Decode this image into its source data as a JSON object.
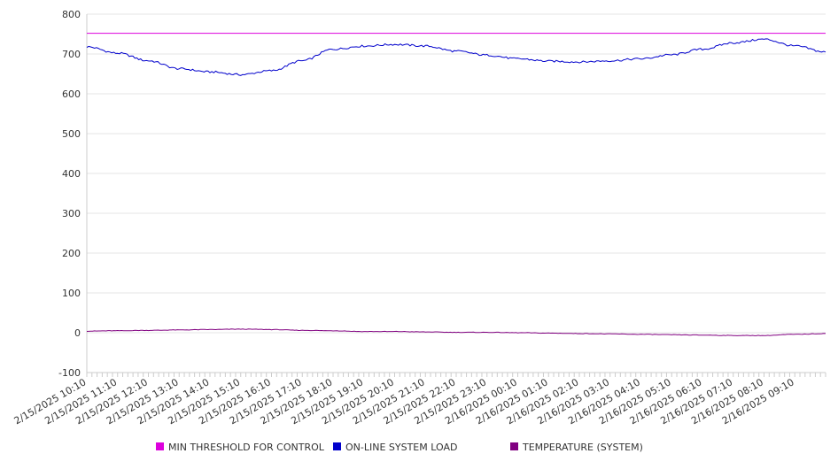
{
  "chart_data": {
    "type": "line",
    "ylim": [
      -100,
      800
    ],
    "yticks": [
      -100,
      0,
      100,
      200,
      300,
      400,
      500,
      600,
      700,
      800
    ],
    "xlim": [
      "2/15/2025 10:10",
      "2/16/2025 10:10"
    ],
    "x_tick_labels": [
      "2/15/2025 10:10",
      "2/15/2025 11:10",
      "2/15/2025 12:10",
      "2/15/2025 13:10",
      "2/15/2025 14:10",
      "2/15/2025 15:10",
      "2/15/2025 16:10",
      "2/15/2025 17:10",
      "2/15/2025 18:10",
      "2/15/2025 19:10",
      "2/15/2025 20:10",
      "2/15/2025 21:10",
      "2/15/2025 22:10",
      "2/15/2025 23:10",
      "2/16/2025 00:10",
      "2/16/2025 01:10",
      "2/16/2025 02:10",
      "2/16/2025 03:10",
      "2/16/2025 04:10",
      "2/16/2025 05:10",
      "2/16/2025 06:10",
      "2/16/2025 07:10",
      "2/16/2025 08:10",
      "2/16/2025 09:10"
    ],
    "grid": true,
    "legend_position": "bottom",
    "series": [
      {
        "name": "MIN THRESHOLD FOR CONTROL",
        "color": "#dd00dd",
        "x": [
          "2/15/2025 10:10",
          "2/16/2025 10:10"
        ],
        "values": [
          752,
          752
        ]
      },
      {
        "name": "ON-LINE SYSTEM LOAD",
        "color": "#0000cc",
        "x": [
          "2/15/2025 10:10",
          "2/15/2025 11:10",
          "2/15/2025 12:10",
          "2/15/2025 13:10",
          "2/15/2025 14:10",
          "2/15/2025 15:10",
          "2/15/2025 16:10",
          "2/15/2025 17:10",
          "2/15/2025 18:10",
          "2/15/2025 19:10",
          "2/15/2025 20:10",
          "2/15/2025 21:10",
          "2/15/2025 22:10",
          "2/15/2025 23:10",
          "2/16/2025 00:10",
          "2/16/2025 01:10",
          "2/16/2025 02:10",
          "2/16/2025 03:10",
          "2/16/2025 04:10",
          "2/16/2025 05:10",
          "2/16/2025 06:10",
          "2/16/2025 07:10",
          "2/16/2025 08:10",
          "2/16/2025 09:10",
          "2/16/2025 10:10"
        ],
        "values": [
          718,
          702,
          683,
          663,
          655,
          648,
          658,
          683,
          712,
          720,
          724,
          720,
          707,
          697,
          688,
          682,
          680,
          683,
          688,
          698,
          712,
          728,
          737,
          720,
          705
        ]
      },
      {
        "name": "TEMPERATURE (SYSTEM)",
        "color": "#800080",
        "x": [
          "2/15/2025 10:10",
          "2/15/2025 11:10",
          "2/15/2025 12:10",
          "2/15/2025 13:10",
          "2/15/2025 14:10",
          "2/15/2025 15:10",
          "2/15/2025 16:10",
          "2/15/2025 17:10",
          "2/15/2025 18:10",
          "2/15/2025 19:10",
          "2/15/2025 20:10",
          "2/15/2025 21:10",
          "2/15/2025 22:10",
          "2/15/2025 23:10",
          "2/16/2025 00:10",
          "2/16/2025 01:10",
          "2/16/2025 02:10",
          "2/16/2025 03:10",
          "2/16/2025 04:10",
          "2/16/2025 05:10",
          "2/16/2025 06:10",
          "2/16/2025 07:10",
          "2/16/2025 08:10",
          "2/16/2025 09:10",
          "2/16/2025 10:10"
        ],
        "values": [
          4,
          5,
          6,
          7,
          8,
          9,
          8,
          6,
          5,
          3,
          3,
          2,
          1,
          1,
          0,
          -1,
          -2,
          -3,
          -4,
          -5,
          -6,
          -7,
          -7,
          -4,
          -2
        ]
      }
    ]
  }
}
